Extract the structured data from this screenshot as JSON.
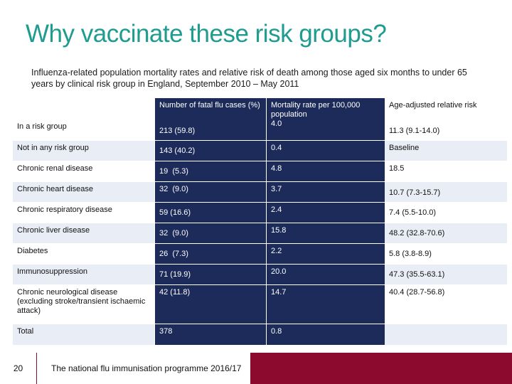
{
  "title": "Why vaccinate these risk groups?",
  "subtitle": "Influenza-related population mortality rates and relative risk of death among those aged six months to under 65 years by clinical risk group in England, September 2010 – May 2011",
  "table": {
    "headers": [
      "",
      "Number of fatal flu cases (%)",
      "Mortality rate per 100,000 population",
      "Age-adjusted relative risk"
    ],
    "rows": [
      [
        "In a risk group",
        "213 (59.8)",
        "4.0",
        "11.3 (9.1-14.0)"
      ],
      [
        "Not in any risk group",
        "143 (40.2)",
        "0.4",
        "Baseline"
      ],
      [
        "Chronic renal disease",
        "19  (5.3)",
        "4.8",
        "18.5"
      ],
      [
        "Chronic heart disease",
        "32  (9.0)",
        "3.7",
        "10.7 (7.3-15.7)"
      ],
      [
        "Chronic respiratory disease",
        "59 (16.6)",
        "2.4",
        "7.4 (5.5-10.0)"
      ],
      [
        "Chronic liver disease",
        "32  (9.0)",
        "15.8",
        "48.2 (32.8-70.6)"
      ],
      [
        "Diabetes",
        "26  (7.3)",
        "2.2",
        "5.8 (3.8-8.9)"
      ],
      [
        "Immunosuppression",
        "71 (19.9)",
        "20.0",
        "47.3 (35.5-63.1)"
      ],
      [
        "Chronic neurological disease (excluding stroke/transient ischaemic attack)",
        "42 (11.8)",
        "14.7",
        "40.4 (28.7-56.8)"
      ],
      [
        "Total",
        "378",
        "0.8",
        ""
      ]
    ]
  },
  "footer": {
    "slide_number": "20",
    "text": "The national flu immunisation programme 2016/17"
  }
}
